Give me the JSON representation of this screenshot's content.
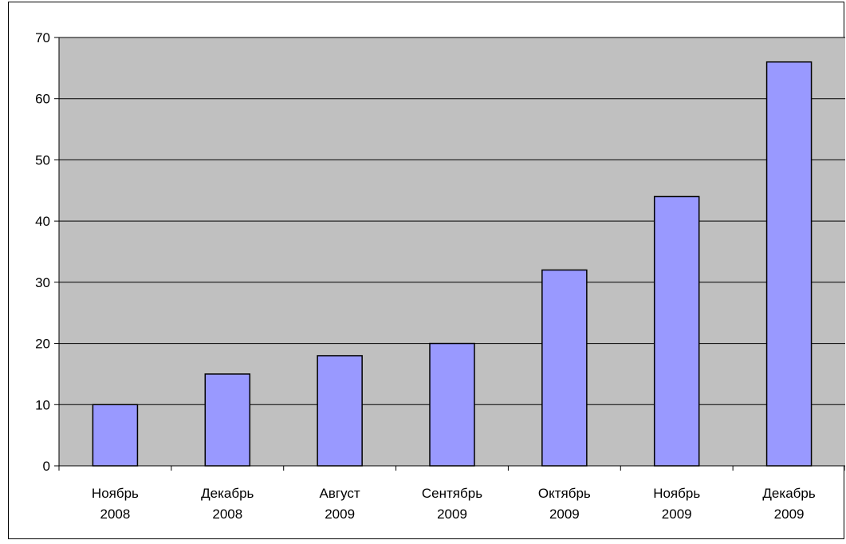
{
  "chart_data": {
    "type": "bar",
    "categories": [
      [
        "Ноябрь",
        "2008"
      ],
      [
        "Декабрь",
        "2008"
      ],
      [
        "Август",
        "2009"
      ],
      [
        "Сентябрь",
        "2009"
      ],
      [
        "Октябрь",
        "2009"
      ],
      [
        "Ноябрь",
        "2009"
      ],
      [
        "Декабрь",
        "2009"
      ]
    ],
    "values": [
      10,
      15,
      18,
      20,
      32,
      44,
      66
    ],
    "ylim": [
      0,
      70
    ],
    "yticks": [
      0,
      10,
      20,
      30,
      40,
      50,
      60,
      70
    ],
    "grid": true,
    "legend": "none",
    "colors": {
      "bar_fill": "#9999ff",
      "bar_stroke": "#000000",
      "plot_bg": "#c0c0c0",
      "grid": "#000000"
    }
  }
}
